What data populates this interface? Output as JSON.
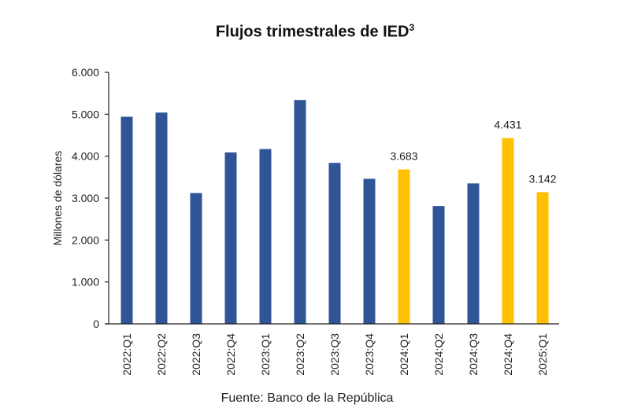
{
  "chart_data": {
    "type": "bar",
    "title": "Flujos trimestrales de IED",
    "title_superscript": "3",
    "xlabel": "",
    "ylabel": "Millones de dólares",
    "ylim": [
      0,
      6000
    ],
    "yticks": [
      0,
      1000,
      2000,
      3000,
      4000,
      5000,
      6000
    ],
    "ytick_labels": [
      "0",
      "1.000",
      "2.000",
      "3.000",
      "4.000",
      "5.000",
      "6.000"
    ],
    "grid": false,
    "categories": [
      "2022:Q1",
      "2022:Q2",
      "2022:Q3",
      "2022:Q4",
      "2023:Q1",
      "2023:Q2",
      "2023:Q3",
      "2023:Q4",
      "2024:Q1",
      "2024:Q2",
      "2024:Q3",
      "2024:Q4",
      "2025:Q1"
    ],
    "values": [
      4940,
      5040,
      3120,
      4090,
      4170,
      5340,
      3840,
      3460,
      3683,
      2810,
      3350,
      4431,
      3142
    ],
    "highlighted": [
      false,
      false,
      false,
      false,
      false,
      false,
      false,
      false,
      true,
      false,
      false,
      true,
      true
    ],
    "data_labels": [
      "",
      "",
      "",
      "",
      "",
      "",
      "",
      "",
      "3.683",
      "",
      "",
      "4.431",
      "3.142"
    ],
    "colors": {
      "default": "#2f5597",
      "highlight": "#ffc000"
    },
    "source": "Fuente: Banco de la República"
  }
}
